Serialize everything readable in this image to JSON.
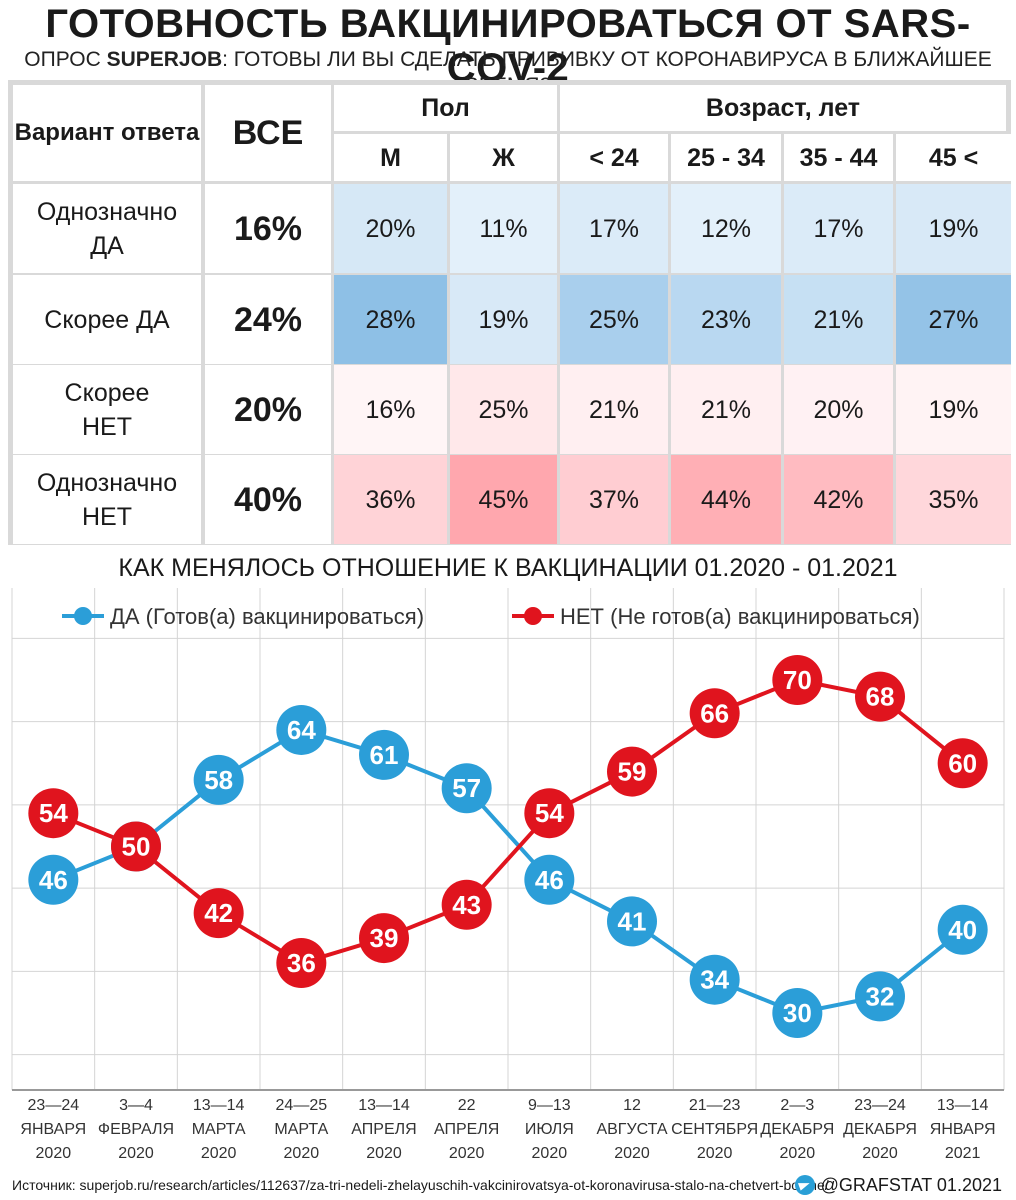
{
  "title": "ГОТОВНОСТЬ ВАКЦИНИРОВАТЬСЯ ОТ SARS-COV-2",
  "subtitle_prefix": "ОПРОС ",
  "subtitle_brand": "SUPERJOB",
  "subtitle_rest": ": ГОТОВЫ ЛИ ВЫ СДЕЛАТЬ ПРИВИВКУ ОТ КОРОНАВИРУСА В БЛИЖАЙШЕЕ ВРЕМЯ?",
  "table": {
    "col_option": "Вариант ответа",
    "col_all": "ВСЕ",
    "group_sex": "Пол",
    "group_age": "Возраст, лет",
    "columns": [
      "М",
      "Ж",
      "< 24",
      "25 - 34",
      "35 - 44",
      "45 <"
    ],
    "rows": [
      {
        "label": "Однозначно ДА",
        "all": "16%",
        "values": [
          "20%",
          "11%",
          "17%",
          "12%",
          "17%",
          "19%"
        ],
        "colors": [
          "#d6e8f6",
          "#e3f0fa",
          "#dbebf8",
          "#e3f0fa",
          "#dbebf8",
          "#d8e9f7"
        ]
      },
      {
        "label": "Скорее ДА",
        "all": "24%",
        "values": [
          "28%",
          "19%",
          "25%",
          "23%",
          "21%",
          "27%"
        ],
        "colors": [
          "#8ec0e6",
          "#d8e9f7",
          "#a9cfed",
          "#b9d8f1",
          "#c6e0f3",
          "#94c3e7"
        ]
      },
      {
        "label": "Скорее НЕТ",
        "all": "20%",
        "values": [
          "16%",
          "25%",
          "21%",
          "21%",
          "20%",
          "19%"
        ],
        "colors": [
          "#fff5f6",
          "#ffe8ea",
          "#ffeff1",
          "#ffeff1",
          "#fff1f3",
          "#fff3f4"
        ]
      },
      {
        "label": "Однозначно НЕТ",
        "all": "40%",
        "values": [
          "36%",
          "45%",
          "37%",
          "44%",
          "42%",
          "35%"
        ],
        "colors": [
          "#ffd3d7",
          "#ffa7ae",
          "#ffcdd2",
          "#ffafb5",
          "#ffbbc1",
          "#ffd7db"
        ]
      }
    ]
  },
  "chart_title": "КАК МЕНЯЛОСЬ ОТНОШЕНИЕ К ВАКЦИНАЦИИ 01.2020 - 01.2021",
  "chart_data": {
    "type": "line",
    "categories": [
      [
        "23—24",
        "ЯНВАРЯ",
        "2020"
      ],
      [
        "3—4",
        "ФЕВРАЛЯ",
        "2020"
      ],
      [
        "13—14",
        "МАРТА",
        "2020"
      ],
      [
        "24—25",
        "МАРТА",
        "2020"
      ],
      [
        "13—14",
        "АПРЕЛЯ",
        "2020"
      ],
      [
        "22",
        "АПРЕЛЯ",
        "2020"
      ],
      [
        "9—13",
        "ИЮЛЯ",
        "2020"
      ],
      [
        "12",
        "АВГУСТА",
        "2020"
      ],
      [
        "21—23",
        "СЕНТЯБРЯ",
        "2020"
      ],
      [
        "2—3",
        "ДЕКАБРЯ",
        "2020"
      ],
      [
        "23—24",
        "ДЕКАБРЯ",
        "2020"
      ],
      [
        "13—14",
        "ЯНВАРЯ",
        "2021"
      ]
    ],
    "series": [
      {
        "name": "ДА (Готов(а) вакцинироваться)",
        "color": "#2b9ed8",
        "values": [
          46,
          50,
          58,
          64,
          61,
          57,
          46,
          41,
          34,
          30,
          32,
          40
        ]
      },
      {
        "name": "НЕТ (Не готов(а) вакцинироваться)",
        "color": "#e0141e",
        "values": [
          54,
          50,
          42,
          36,
          39,
          43,
          54,
          59,
          66,
          70,
          68,
          60
        ]
      }
    ],
    "ylim": [
      20,
      75
    ],
    "grid": true,
    "legend": "top"
  },
  "footer": "Источник: superjob.ru/research/articles/112637/za-tri-nedeli-zhelayuschih-vakcinirovatsya-ot-koronavirusa-stalo-na-chetvert-bolshe/",
  "credit": "@GRAFSTAT 01.2021"
}
